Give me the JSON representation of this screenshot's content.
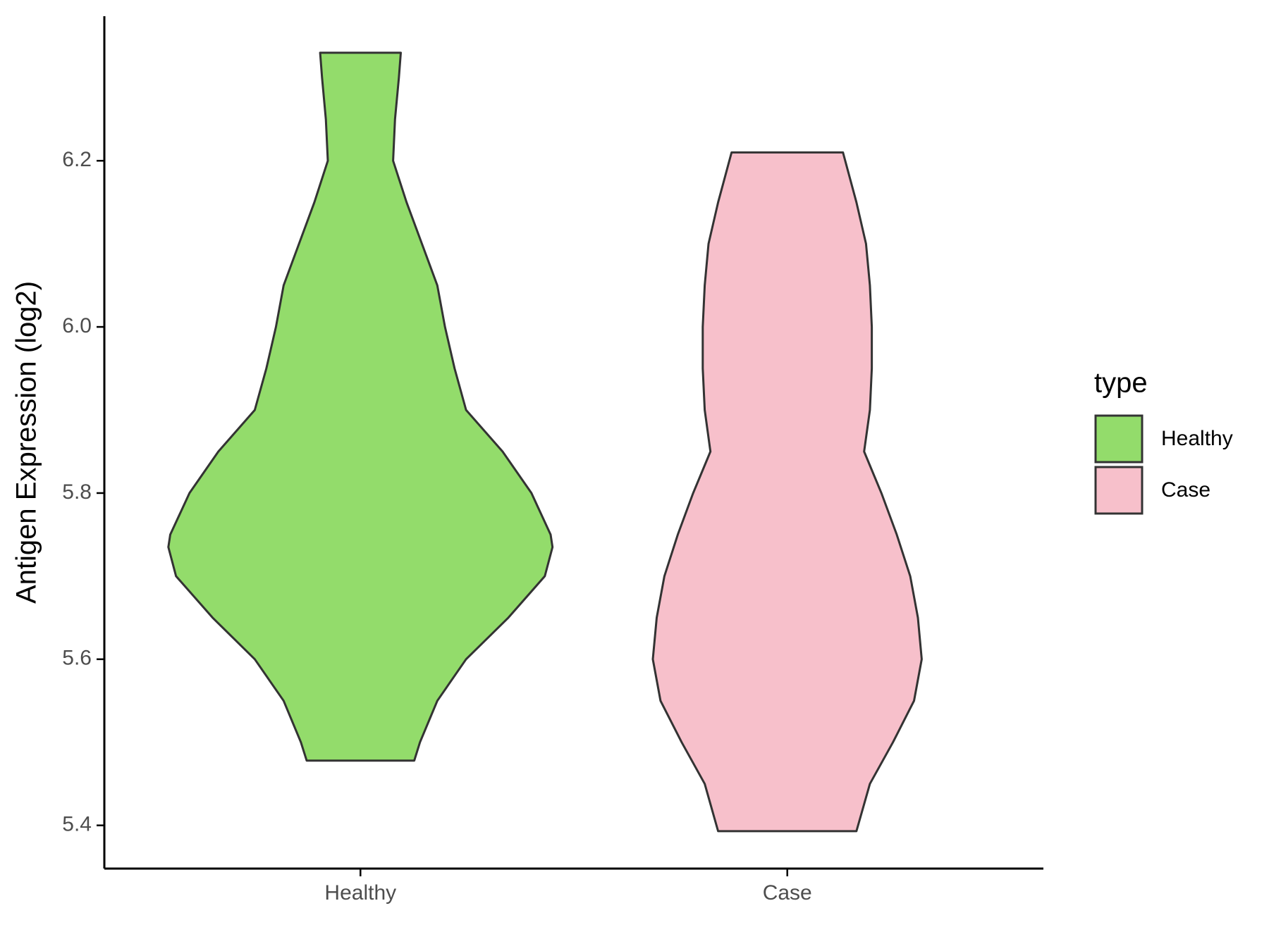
{
  "chart_data": {
    "type": "violin",
    "y_label": "Antigen Expression (log2)",
    "categories": [
      "Healthy",
      "Case"
    ],
    "legend_title": "type",
    "legend_position": "right",
    "series": [
      {
        "name": "Healthy",
        "color": "#93dc6b",
        "y": [
          6.33,
          6.3,
          6.25,
          6.2,
          6.15,
          6.1,
          6.05,
          6.0,
          5.95,
          5.9,
          5.85,
          5.8,
          5.75,
          5.735,
          5.7,
          5.65,
          5.6,
          5.55,
          5.5,
          5.478
        ],
        "density": [
          0.21,
          0.2,
          0.18,
          0.17,
          0.24,
          0.32,
          0.4,
          0.44,
          0.49,
          0.55,
          0.74,
          0.89,
          0.99,
          1.0,
          0.96,
          0.77,
          0.55,
          0.4,
          0.31,
          0.28
        ]
      },
      {
        "name": "Case",
        "color": "#f7c0cb",
        "y": [
          6.21,
          6.15,
          6.1,
          6.05,
          6.0,
          5.95,
          5.9,
          5.85,
          5.8,
          5.75,
          5.7,
          5.65,
          5.6,
          5.55,
          5.5,
          5.45,
          5.393
        ],
        "density": [
          0.29,
          0.36,
          0.41,
          0.43,
          0.44,
          0.44,
          0.43,
          0.4,
          0.49,
          0.57,
          0.64,
          0.68,
          0.7,
          0.66,
          0.55,
          0.43,
          0.36
        ]
      }
    ],
    "ylim": [
      5.348,
      6.374
    ],
    "yticks": [
      5.4,
      5.6,
      5.8,
      {
        "value": 6,
        "label": "6.0"
      },
      6.2
    ],
    "grid": false
  }
}
